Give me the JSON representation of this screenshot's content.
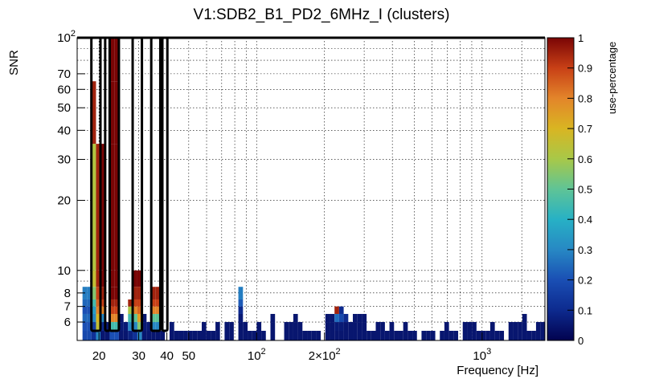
{
  "chart_data": {
    "type": "heatmap",
    "title": "V1:SDB2_B1_PD2_6MHz_I (clusters)",
    "xlabel": "Frequency [Hz]",
    "ylabel": "SNR",
    "zlabel": "use-percentage",
    "x_scale": "log",
    "y_scale": "log",
    "xlim": [
      16,
      1900
    ],
    "ylim": [
      5,
      100
    ],
    "zlim": [
      0,
      1
    ],
    "grid": true,
    "x_ticks": [
      {
        "value": 20,
        "label": "20"
      },
      {
        "value": 30,
        "label": "30"
      },
      {
        "value": 40,
        "label": "40"
      },
      {
        "value": 50,
        "label": "50"
      },
      {
        "value": 100,
        "label": "10",
        "exp": "2"
      },
      {
        "value": 200,
        "label": "2×10",
        "exp": "2"
      },
      {
        "value": 1000,
        "label": "10",
        "exp": "3"
      }
    ],
    "y_ticks": [
      {
        "value": 6,
        "label": "6"
      },
      {
        "value": 7,
        "label": "7"
      },
      {
        "value": 8,
        "label": "8"
      },
      {
        "value": 10,
        "label": "10"
      },
      {
        "value": 20,
        "label": "20"
      },
      {
        "value": 30,
        "label": "30"
      },
      {
        "value": 40,
        "label": "40"
      },
      {
        "value": 50,
        "label": "50"
      },
      {
        "value": 60,
        "label": "60"
      },
      {
        "value": 70,
        "label": "70"
      },
      {
        "value": 100,
        "label": "10",
        "exp": "2"
      }
    ],
    "z_ticks": [
      "0",
      "0.1",
      "0.2",
      "0.3",
      "0.4",
      "0.5",
      "0.6",
      "0.7",
      "0.8",
      "0.9",
      "1"
    ],
    "bin_edges_snr": [
      5,
      5.5,
      6,
      6.5,
      7,
      7.5,
      8.5,
      10,
      35,
      65,
      100
    ],
    "columns": [
      {
        "f0": 16.9,
        "f1": 17.7,
        "z": [
          0.18,
          0.2,
          0.24,
          0.2,
          0.24,
          0.28
        ]
      },
      {
        "f0": 17.7,
        "f1": 18.5,
        "z": [
          0.18,
          0.2,
          0.24,
          0.2,
          0.24,
          0.28
        ]
      },
      {
        "f0": 18.5,
        "f1": 19.4,
        "z": [
          0.12,
          0.15,
          0.3,
          0.35,
          0.45,
          0.55,
          0.65,
          0.62,
          0.95
        ]
      },
      {
        "f0": 19.4,
        "f1": 20.3,
        "z": [
          0.3,
          0.65,
          0.7,
          0.8,
          0.85,
          0.9,
          0.95,
          0.95
        ]
      },
      {
        "f0": 20.3,
        "f1": 21.3,
        "z": [
          0.05,
          0.1,
          0.3,
          0.8,
          0.9,
          0.95,
          1.0,
          1.0
        ]
      },
      {
        "f0": 21.3,
        "f1": 22.3,
        "z": [
          0.05,
          0.06
        ]
      },
      {
        "f0": 22.3,
        "f1": 23.4,
        "z": [
          0.2,
          0.45,
          0.8,
          0.9,
          0.95,
          1.0,
          1.0,
          1.0,
          1.0,
          1.0
        ]
      },
      {
        "f0": 23.4,
        "f1": 24.5,
        "z": [
          0.2,
          0.45,
          0.8,
          0.9,
          0.95,
          1.0,
          1.0,
          1.0,
          1.0,
          1.0
        ]
      },
      {
        "f0": 24.5,
        "f1": 25.7,
        "z": [
          0.05,
          0.06,
          0.05
        ]
      },
      {
        "f0": 25.7,
        "f1": 26.9,
        "z": [
          0.05,
          0.06
        ]
      },
      {
        "f0": 26.9,
        "f1": 28.2,
        "z": [
          0.08,
          0.3,
          0.45,
          0.6,
          0.95
        ]
      },
      {
        "f0": 28.2,
        "f1": 29.6,
        "z": [
          0.12,
          0.3,
          0.5,
          0.8,
          0.9,
          0.95,
          1.0
        ]
      },
      {
        "f0": 29.6,
        "f1": 31.0,
        "z": [
          0.3,
          0.55,
          0.75,
          0.85,
          0.9,
          0.95,
          1.0
        ]
      },
      {
        "f0": 31.0,
        "f1": 32.5,
        "z": [
          0.05,
          0.06,
          0.05
        ]
      },
      {
        "f0": 32.5,
        "f1": 34.1,
        "z": [
          0.05,
          0.06
        ]
      },
      {
        "f0": 34.1,
        "f1": 35.7,
        "z": [
          0.05,
          0.3,
          0.5,
          0.8,
          0.9,
          0.95
        ]
      },
      {
        "f0": 35.7,
        "f1": 37.4,
        "z": [
          0.05,
          0.3,
          0.5,
          0.8,
          0.9,
          0.95
        ]
      },
      {
        "f0": 37.4,
        "f1": 39.2,
        "z": [
          0.05
        ]
      },
      {
        "f0": 41.1,
        "f1": 43.1,
        "z": [
          0.05,
          0.06
        ]
      },
      {
        "f0": 43.1,
        "f1": 45.2,
        "z": [
          0.05
        ]
      },
      {
        "f0": 45.2,
        "f1": 47.3,
        "z": [
          0.05
        ]
      },
      {
        "f0": 47.3,
        "f1": 49.6,
        "z": [
          0.05
        ]
      },
      {
        "f0": 49.6,
        "f1": 52.0,
        "z": [
          0.05
        ]
      },
      {
        "f0": 52.0,
        "f1": 54.5,
        "z": [
          0.05
        ]
      },
      {
        "f0": 54.5,
        "f1": 57.1,
        "z": [
          0.05
        ]
      },
      {
        "f0": 57.1,
        "f1": 59.8,
        "z": [
          0.05,
          0.05
        ]
      },
      {
        "f0": 59.8,
        "f1": 62.7,
        "z": [
          0.05
        ]
      },
      {
        "f0": 62.7,
        "f1": 65.7,
        "z": [
          0.05
        ]
      },
      {
        "f0": 65.7,
        "f1": 68.8,
        "z": [
          0.05,
          0.05
        ]
      },
      {
        "f0": 72.1,
        "f1": 75.6,
        "z": [
          0.05,
          0.05
        ]
      },
      {
        "f0": 75.6,
        "f1": 79.2,
        "z": [
          0.05,
          0.05
        ]
      },
      {
        "f0": 83.0,
        "f1": 87.0,
        "z": [
          0.05,
          0.05,
          0.06,
          0.1,
          0.22,
          0.28
        ]
      },
      {
        "f0": 87.0,
        "f1": 91.2,
        "z": [
          0.05,
          0.05
        ]
      },
      {
        "f0": 91.2,
        "f1": 95.5,
        "z": [
          0.05
        ]
      },
      {
        "f0": 95.5,
        "f1": 100.1,
        "z": [
          0.05
        ]
      },
      {
        "f0": 100.1,
        "f1": 104.9,
        "z": [
          0.05,
          0.05
        ]
      },
      {
        "f0": 104.9,
        "f1": 109.9,
        "z": [
          0.05
        ]
      },
      {
        "f0": 115.2,
        "f1": 120.7,
        "z": [
          0.05,
          0.05,
          0.05
        ]
      },
      {
        "f0": 132.5,
        "f1": 138.8,
        "z": [
          0.05,
          0.05
        ]
      },
      {
        "f0": 138.8,
        "f1": 145.5,
        "z": [
          0.05,
          0.05
        ]
      },
      {
        "f0": 145.5,
        "f1": 152.4,
        "z": [
          0.05,
          0.05,
          0.05
        ]
      },
      {
        "f0": 152.4,
        "f1": 159.7,
        "z": [
          0.05,
          0.05
        ]
      },
      {
        "f0": 159.7,
        "f1": 167.4,
        "z": [
          0.05
        ]
      },
      {
        "f0": 167.4,
        "f1": 175.4,
        "z": [
          0.05
        ]
      },
      {
        "f0": 175.4,
        "f1": 183.8,
        "z": [
          0.05
        ]
      },
      {
        "f0": 183.8,
        "f1": 192.6,
        "z": [
          0.05
        ]
      },
      {
        "f0": 201.8,
        "f1": 211.5,
        "z": [
          0.05,
          0.05,
          0.05
        ]
      },
      {
        "f0": 211.5,
        "f1": 221.6,
        "z": [
          0.05,
          0.05,
          0.05
        ]
      },
      {
        "f0": 221.6,
        "f1": 232.2,
        "z": [
          0.05,
          0.06,
          0.25,
          0.95
        ]
      },
      {
        "f0": 232.2,
        "f1": 243.3,
        "z": [
          0.05,
          0.06,
          0.18,
          0.1
        ]
      },
      {
        "f0": 243.3,
        "f1": 255.0,
        "z": [
          0.05,
          0.05,
          0.1
        ]
      },
      {
        "f0": 255.0,
        "f1": 267.2,
        "z": [
          0.05,
          0.05
        ]
      },
      {
        "f0": 267.2,
        "f1": 280.0,
        "z": [
          0.05,
          0.05,
          0.05
        ]
      },
      {
        "f0": 280.0,
        "f1": 293.4,
        "z": [
          0.05,
          0.05,
          0.05
        ]
      },
      {
        "f0": 293.4,
        "f1": 307.5,
        "z": [
          0.05,
          0.05,
          0.05
        ]
      },
      {
        "f0": 307.5,
        "f1": 322.2,
        "z": [
          0.05
        ]
      },
      {
        "f0": 322.2,
        "f1": 337.6,
        "z": [
          0.05
        ]
      },
      {
        "f0": 337.6,
        "f1": 353.8,
        "z": [
          0.05,
          0.05
        ]
      },
      {
        "f0": 353.8,
        "f1": 370.7,
        "z": [
          0.05,
          0.05
        ]
      },
      {
        "f0": 370.7,
        "f1": 388.4,
        "z": [
          0.05
        ]
      },
      {
        "f0": 388.4,
        "f1": 407.0,
        "z": [
          0.05,
          0.05
        ]
      },
      {
        "f0": 407.0,
        "f1": 426.5,
        "z": [
          0.05
        ]
      },
      {
        "f0": 426.5,
        "f1": 446.9,
        "z": [
          0.05
        ]
      },
      {
        "f0": 446.9,
        "f1": 468.3,
        "z": [
          0.05,
          0.05
        ]
      },
      {
        "f0": 468.3,
        "f1": 490.7,
        "z": [
          0.05
        ]
      },
      {
        "f0": 490.7,
        "f1": 514.2,
        "z": [
          0.05
        ]
      },
      {
        "f0": 538.8,
        "f1": 564.6,
        "z": [
          0.05
        ]
      },
      {
        "f0": 564.6,
        "f1": 591.6,
        "z": [
          0.05
        ]
      },
      {
        "f0": 591.6,
        "f1": 620.0,
        "z": [
          0.05
        ]
      },
      {
        "f0": 649.6,
        "f1": 680.7,
        "z": [
          0.05
        ]
      },
      {
        "f0": 680.7,
        "f1": 713.3,
        "z": [
          0.05,
          0.05
        ]
      },
      {
        "f0": 713.3,
        "f1": 747.5,
        "z": [
          0.05
        ]
      },
      {
        "f0": 747.5,
        "f1": 783.3,
        "z": [
          0.05
        ]
      },
      {
        "f0": 820.8,
        "f1": 860.1,
        "z": [
          0.05,
          0.05
        ]
      },
      {
        "f0": 860.1,
        "f1": 901.3,
        "z": [
          0.05,
          0.05
        ]
      },
      {
        "f0": 901.3,
        "f1": 944.5,
        "z": [
          0.05,
          0.05
        ]
      },
      {
        "f0": 944.5,
        "f1": 989.7,
        "z": [
          0.05
        ]
      },
      {
        "f0": 989.7,
        "f1": 1037.1,
        "z": [
          0.05
        ]
      },
      {
        "f0": 1037.1,
        "f1": 1086.8,
        "z": [
          0.05
        ]
      },
      {
        "f0": 1086.8,
        "f1": 1138.8,
        "z": [
          0.05,
          0.05
        ]
      },
      {
        "f0": 1138.8,
        "f1": 1193.4,
        "z": [
          0.05
        ]
      },
      {
        "f0": 1193.4,
        "f1": 1250.5,
        "z": [
          0.05
        ]
      },
      {
        "f0": 1310.4,
        "f1": 1373.2,
        "z": [
          0.05,
          0.05
        ]
      },
      {
        "f0": 1373.2,
        "f1": 1438.9,
        "z": [
          0.05,
          0.05
        ]
      },
      {
        "f0": 1438.9,
        "f1": 1507.8,
        "z": [
          0.05,
          0.05
        ]
      },
      {
        "f0": 1507.8,
        "f1": 1580.0,
        "z": [
          0.05,
          0.05,
          0.05
        ]
      },
      {
        "f0": 1580.0,
        "f1": 1655.7,
        "z": [
          0.05
        ]
      },
      {
        "f0": 1655.7,
        "f1": 1735.0,
        "z": [
          0.05
        ]
      },
      {
        "f0": 1735.0,
        "f1": 1818.1,
        "z": [
          0.05,
          0.05
        ]
      },
      {
        "f0": 1818.1,
        "f1": 1900.0,
        "z": [
          0.05,
          0.05
        ]
      }
    ],
    "highlight_boxes": [
      {
        "f0": 18.5,
        "f1": 20.3,
        "snr_top": 100
      },
      {
        "f0": 21.3,
        "f1": 22.3,
        "snr_top": 100
      },
      {
        "f0": 22.3,
        "f1": 24.5,
        "snr_top": 100
      },
      {
        "f0": 28.2,
        "f1": 31.0,
        "snr_top": 100
      },
      {
        "f0": 34.1,
        "f1": 37.4,
        "snr_top": 100
      },
      {
        "f0": 38.2,
        "f1": 40.2,
        "snr_top": 100
      }
    ],
    "colormap": [
      "#02024f",
      "#0d2a8e",
      "#1a4fb4",
      "#2788c4",
      "#27b1c5",
      "#5fc496",
      "#a8c848",
      "#d9b522",
      "#e3852a",
      "#c84016",
      "#7a0505"
    ]
  }
}
